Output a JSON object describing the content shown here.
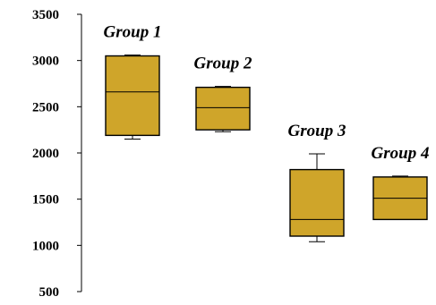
{
  "chart_data": {
    "type": "box",
    "title": "",
    "xlabel": "",
    "ylabel": "",
    "ylim": [
      500,
      3500
    ],
    "yticks": [
      500,
      1000,
      1500,
      2000,
      2500,
      3000,
      3500
    ],
    "grid": false,
    "legend": "none",
    "box_color": "#CFA52A",
    "series": [
      {
        "name": "Group 1",
        "min": 2150,
        "q1": 2190,
        "median": 2660,
        "q3": 3050,
        "max": 3060
      },
      {
        "name": "Group 2",
        "min": 2230,
        "q1": 2250,
        "median": 2490,
        "q3": 2710,
        "max": 2720
      },
      {
        "name": "Group 3",
        "min": 1040,
        "q1": 1100,
        "median": 1280,
        "q3": 1820,
        "max": 1990
      },
      {
        "name": "Group 4",
        "min": 1280,
        "q1": 1280,
        "median": 1510,
        "q3": 1740,
        "max": 1750
      }
    ]
  }
}
